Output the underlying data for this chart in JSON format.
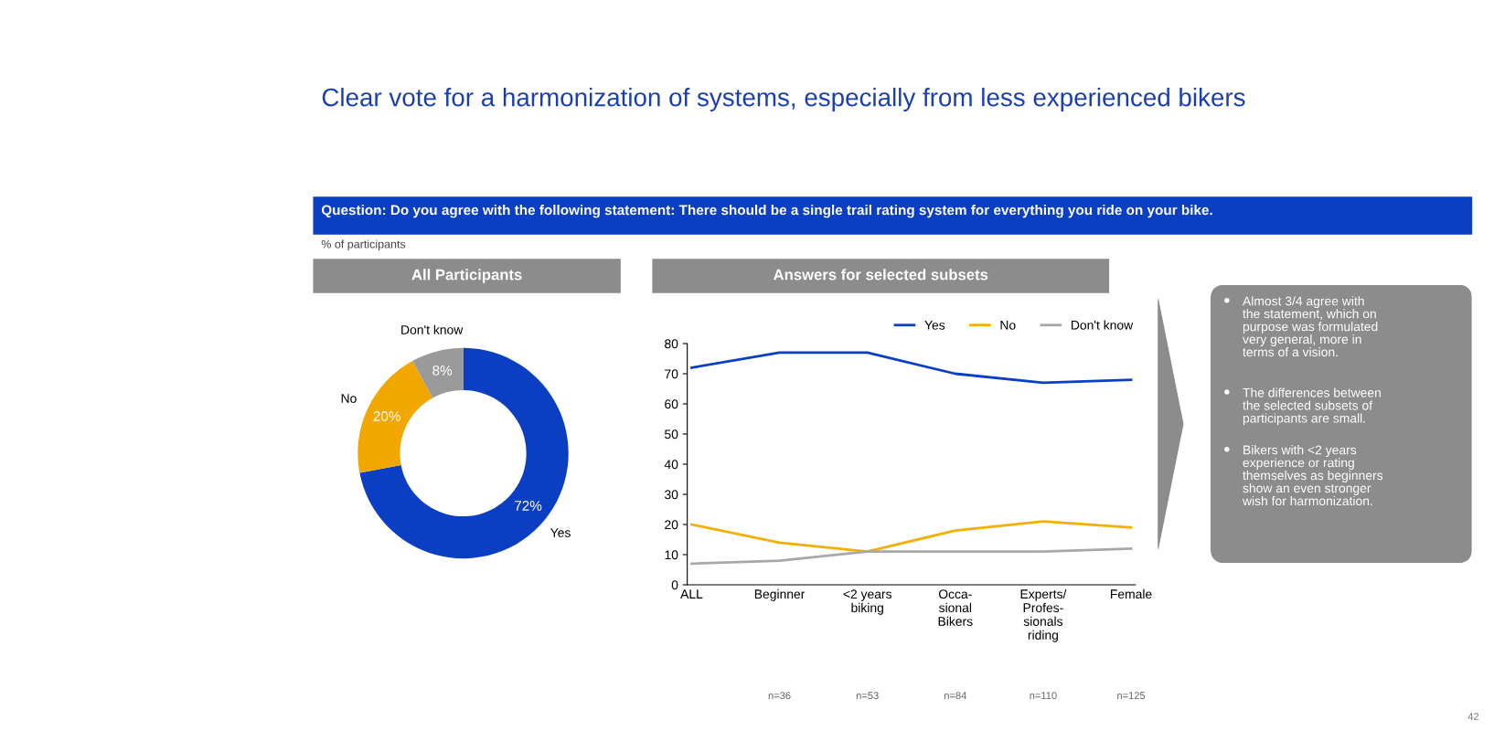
{
  "chart_data": [
    {
      "type": "donut",
      "title": "All Participants",
      "subtitle": "Question: Do you agree with the following statement: There should be a single trail rating system for everything you ride on your bike.",
      "annotations": [
        "Clear vote for a harmonization of systems, especially from less experienced bikers",
        "% of participants",
        "42"
      ],
      "categories": [
        "Yes",
        "No",
        "Don't know"
      ],
      "values": [
        72,
        20,
        8
      ],
      "colors": [
        "#0a3fc4",
        "#f2a600",
        "#9a9a9a"
      ],
      "value_labels": [
        "72%",
        "20%",
        "8%"
      ]
    },
    {
      "type": "line",
      "title": "Answers for selected subsets",
      "categories": [
        "ALL",
        "Beginner",
        "<2 years\nbiking",
        "Occa-\nsional\nBikers",
        "Experts/\nProfes-\nsionals\nriding",
        "Female"
      ],
      "series": [
        {
          "name": "Yes",
          "color": "#0a3fc4",
          "values": [
            72,
            77,
            77,
            70,
            67,
            68
          ]
        },
        {
          "name": "No",
          "color": "#f2b000",
          "values": [
            20,
            14,
            11,
            18,
            21,
            19
          ]
        },
        {
          "name": "Don't know",
          "color": "#a8a8a8",
          "values": [
            7,
            8,
            11,
            11,
            11,
            12
          ]
        }
      ],
      "ylim": [
        0,
        80
      ],
      "yticks": [
        0,
        10,
        20,
        30,
        40,
        50,
        60,
        70,
        80
      ],
      "legend": "top right",
      "grid": false,
      "marker": "none",
      "line_style": "solid",
      "annotations": [
        "n=36",
        "n=53",
        "n=84",
        "n=110",
        "n=125"
      ]
    },
    {
      "type": "other",
      "annotations": [
        "Almost 3/4 agree with the statement, which on purpose was formulated very general, more in terms of a vision.",
        "The differences between the selected subsets of participants are small.",
        "Bikers with <2 years experience or rating themselves as beginners show an even stronger wish for harmonization."
      ]
    }
  ]
}
